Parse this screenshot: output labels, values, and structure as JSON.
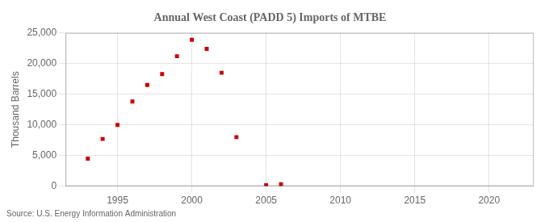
{
  "chart_data": {
    "type": "scatter",
    "title": "Annual West Coast (PADD 5) Imports of MTBE",
    "y_label": "Thousand Barrels",
    "annotations": [
      "Source: U.S. Energy Information Administration"
    ],
    "x": [
      1993,
      1994,
      1995,
      1996,
      1997,
      1998,
      1999,
      2000,
      2001,
      2002,
      2003,
      2005,
      2006
    ],
    "values": [
      4500,
      7700,
      10000,
      13800,
      16500,
      18300,
      21200,
      23900,
      22400,
      18500,
      8000,
      150,
      300
    ],
    "color": "#CC0000",
    "marker": "square",
    "xlim": [
      1991.5,
      2023
    ],
    "xticks": [
      1995,
      2000,
      2005,
      2010,
      2015,
      2020
    ],
    "ylim": [
      0,
      25000
    ],
    "yticks": [
      0,
      {
        "value": 5000,
        "label": "5,000"
      },
      {
        "value": 10000,
        "label": "10,000"
      },
      {
        "value": 15000,
        "label": "15,000"
      },
      {
        "value": 20000,
        "label": "20,000"
      },
      {
        "value": 25000,
        "label": "25,000"
      }
    ],
    "grid": true
  }
}
